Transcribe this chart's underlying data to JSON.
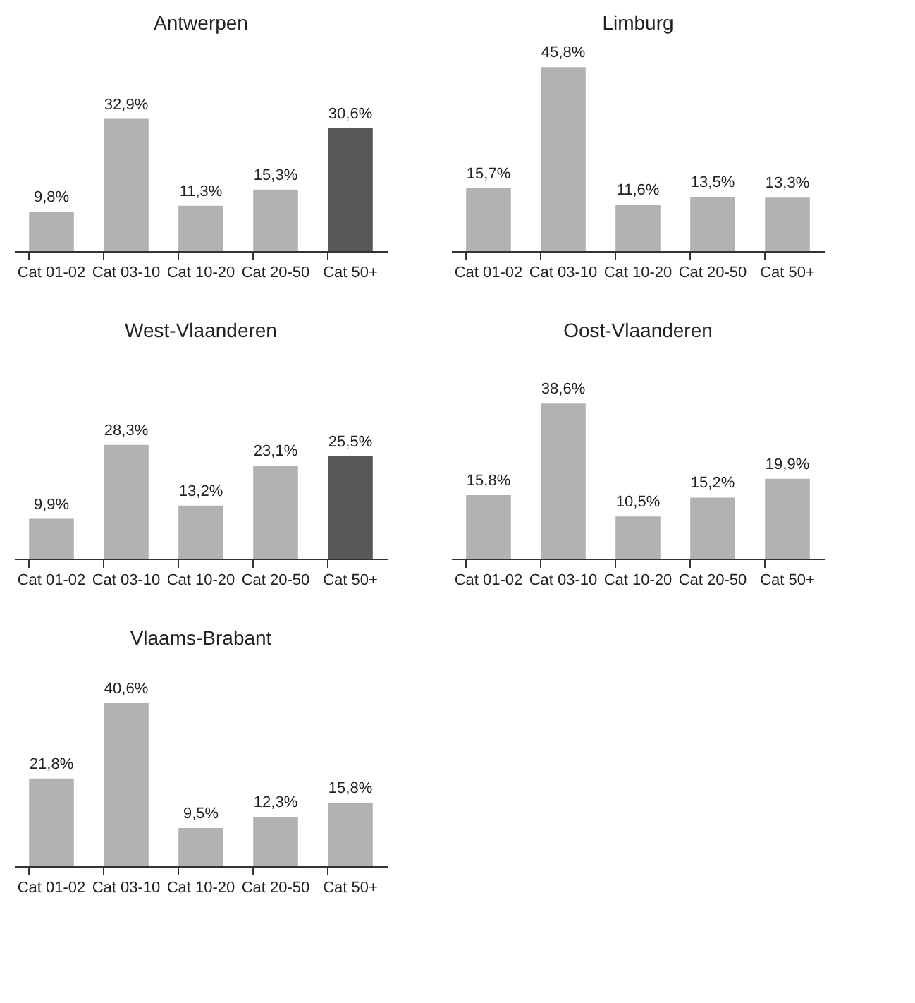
{
  "chart_data": [
    {
      "type": "bar",
      "title": "Antwerpen",
      "categories": [
        "Cat 01-02",
        "Cat 03-10",
        "Cat 10-20",
        "Cat 20-50",
        "Cat 50+"
      ],
      "values": [
        9.8,
        32.9,
        11.3,
        15.3,
        30.6
      ],
      "colors": [
        "#b2b2b3",
        "#b2b2b3",
        "#b2b2b3",
        "#b2b2b3",
        "#58585a"
      ],
      "value_labels": [
        "9,8%",
        "32,9%",
        "11,3%",
        "15,3%",
        "30,6%"
      ]
    },
    {
      "type": "bar",
      "title": "Limburg",
      "categories": [
        "Cat 01-02",
        "Cat 03-10",
        "Cat 10-20",
        "Cat 20-50",
        "Cat 50+"
      ],
      "values": [
        15.7,
        45.8,
        11.6,
        13.5,
        13.3
      ],
      "colors": [
        "#b2b2b3",
        "#b2b2b3",
        "#b2b2b3",
        "#b2b2b3",
        "#b2b2b3"
      ],
      "value_labels": [
        "15,7%",
        "45,8%",
        "11,6%",
        "13,5%",
        "13,3%"
      ]
    },
    {
      "type": "bar",
      "title": "West-Vlaanderen",
      "categories": [
        "Cat 01-02",
        "Cat 03-10",
        "Cat 10-20",
        "Cat 20-50",
        "Cat 50+"
      ],
      "values": [
        9.9,
        28.3,
        13.2,
        23.1,
        25.5
      ],
      "colors": [
        "#b2b2b3",
        "#b2b2b3",
        "#b2b2b3",
        "#b2b2b3",
        "#58585a"
      ],
      "value_labels": [
        "9,9%",
        "28,3%",
        "13,2%",
        "23,1%",
        "25,5%"
      ]
    },
    {
      "type": "bar",
      "title": "Oost-Vlaanderen",
      "categories": [
        "Cat 01-02",
        "Cat 03-10",
        "Cat 10-20",
        "Cat 20-50",
        "Cat 50+"
      ],
      "values": [
        15.8,
        38.6,
        10.5,
        15.2,
        19.9
      ],
      "colors": [
        "#b2b2b3",
        "#b2b2b3",
        "#b2b2b3",
        "#b2b2b3",
        "#b2b2b3"
      ],
      "value_labels": [
        "15,8%",
        "38,6%",
        "10,5%",
        "15,2%",
        "19,9%"
      ]
    },
    {
      "type": "bar",
      "title": "Vlaams-Brabant",
      "categories": [
        "Cat 01-02",
        "Cat 03-10",
        "Cat 10-20",
        "Cat 20-50",
        "Cat 50+"
      ],
      "values": [
        21.8,
        40.6,
        9.5,
        12.3,
        15.8
      ],
      "colors": [
        "#b2b2b3",
        "#b2b2b3",
        "#b2b2b3",
        "#b2b2b3",
        "#b2b2b3"
      ],
      "value_labels": [
        "21,8%",
        "40,6%",
        "9,5%",
        "12,3%",
        "15,8%"
      ]
    }
  ]
}
